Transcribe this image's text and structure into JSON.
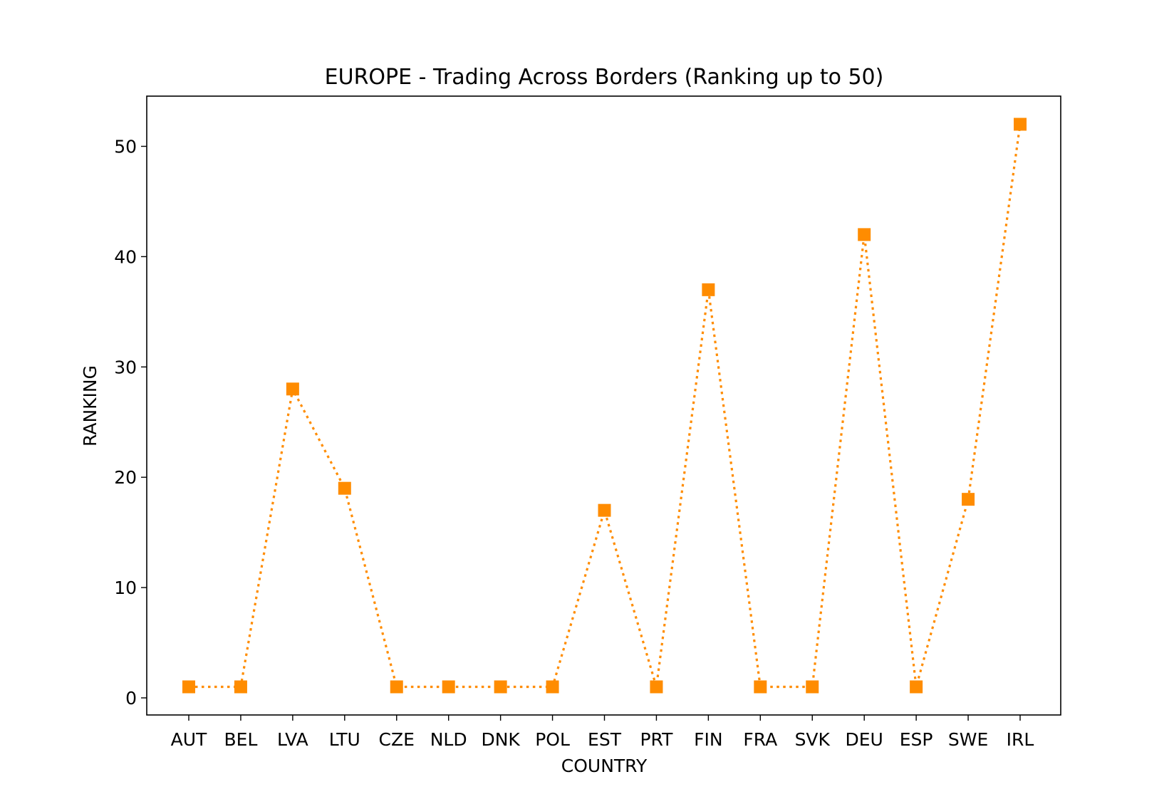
{
  "chart_data": {
    "type": "line",
    "title": "EUROPE - Trading Across Borders (Ranking up to 50)",
    "xlabel": "COUNTRY",
    "ylabel": "RANKING",
    "categories": [
      "AUT",
      "BEL",
      "LVA",
      "LTU",
      "CZE",
      "NLD",
      "DNK",
      "POL",
      "EST",
      "PRT",
      "FIN",
      "FRA",
      "SVK",
      "DEU",
      "ESP",
      "SWE",
      "IRL"
    ],
    "series": [
      {
        "values": [
          1,
          1,
          28,
          19,
          1,
          1,
          1,
          1,
          17,
          1,
          37,
          1,
          1,
          42,
          1,
          18,
          52
        ],
        "color": "#ff8c00",
        "line_style": "dotted",
        "marker": "square"
      }
    ],
    "yticks": [
      0,
      10,
      20,
      30,
      40,
      50
    ],
    "ylim": [
      -1.55,
      54.55
    ],
    "grid": false,
    "legend": "none"
  }
}
